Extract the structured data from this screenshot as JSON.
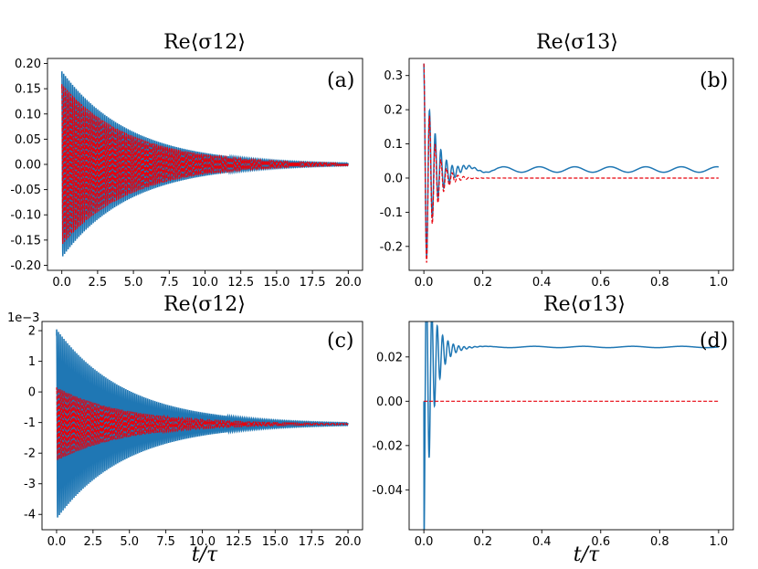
{
  "colors": {
    "blue": "#1f77b4",
    "red": "#e8000b",
    "axis": "#000000"
  },
  "chart_data": [
    {
      "id": "a",
      "type": "line",
      "title": "Re⟨σ12⟩",
      "panel_label": "(a)",
      "xlabel": "",
      "xlim": [
        -1,
        21
      ],
      "ylim": [
        -0.21,
        0.21
      ],
      "xticks": [
        0.0,
        2.5,
        5.0,
        7.5,
        10.0,
        12.5,
        15.0,
        17.5,
        20.0
      ],
      "xtick_labels": [
        "0.0",
        "2.5",
        "5.0",
        "7.5",
        "10.0",
        "12.5",
        "15.0",
        "17.5",
        "20.0"
      ],
      "yticks": [
        -0.2,
        -0.15,
        -0.1,
        -0.05,
        0.0,
        0.05,
        0.1,
        0.15,
        0.2
      ],
      "ytick_labels": [
        "-0.20",
        "-0.15",
        "-0.10",
        "-0.05",
        "0.00",
        "0.05",
        "0.10",
        "0.15",
        "0.20"
      ],
      "offset_text": "",
      "series": [
        {
          "name": "blue",
          "style": "solid",
          "x_range": [
            0,
            20
          ],
          "baseline": 0,
          "amplitude": 0.185,
          "decay_rate": 0.21,
          "periods": 160
        },
        {
          "name": "red",
          "style": "dashed",
          "x_range": [
            0,
            20
          ],
          "baseline": 0,
          "amplitude": 0.16,
          "decay_rate": 0.21,
          "periods": 160
        }
      ]
    },
    {
      "id": "b",
      "type": "line",
      "title": "Re⟨σ13⟩",
      "panel_label": "(b)",
      "xlabel": "",
      "xlim": [
        -0.05,
        1.05
      ],
      "ylim": [
        -0.27,
        0.35
      ],
      "xticks": [
        0.0,
        0.2,
        0.4,
        0.6,
        0.8,
        1.0
      ],
      "xtick_labels": [
        "0.0",
        "0.2",
        "0.4",
        "0.6",
        "0.8",
        "1.0"
      ],
      "yticks": [
        -0.2,
        -0.1,
        0.0,
        0.1,
        0.2,
        0.3
      ],
      "ytick_labels": [
        "-0.2",
        "-0.1",
        "0.0",
        "0.1",
        "0.2",
        "0.3"
      ],
      "offset_text": "",
      "series": [
        {
          "name": "blue",
          "style": "solid",
          "x_range": [
            0,
            1
          ],
          "start": 0.335,
          "steady": 0.025,
          "transient_amp": 0.31,
          "transient_decay": 28,
          "transient_freq": 52,
          "steady_amp": 0.008,
          "steady_freq": 8.3
        },
        {
          "name": "red",
          "style": "dashed",
          "x_range": [
            0,
            1
          ],
          "start": 0.335,
          "steady": 0.0,
          "transient_amp": 0.335,
          "transient_decay": 32,
          "transient_freq": 52,
          "steady_amp": 0.0,
          "steady_freq": 0
        }
      ]
    },
    {
      "id": "c",
      "type": "line",
      "title": "Re⟨σ12⟩",
      "panel_label": "(c)",
      "xlabel": "t/τ",
      "xlim": [
        -1,
        21
      ],
      "ylim": [
        -4.5,
        2.3
      ],
      "xticks": [
        0.0,
        2.5,
        5.0,
        7.5,
        10.0,
        12.5,
        15.0,
        17.5,
        20.0
      ],
      "xtick_labels": [
        "0.0",
        "2.5",
        "5.0",
        "7.5",
        "10.0",
        "12.5",
        "15.0",
        "17.5",
        "20.0"
      ],
      "yticks": [
        -4,
        -3,
        -2,
        -1,
        0,
        1,
        2
      ],
      "ytick_labels": [
        "-4",
        "-3",
        "-2",
        "-1",
        "0",
        "1",
        "2"
      ],
      "offset_text": "1e−3",
      "series": [
        {
          "name": "blue",
          "style": "solid",
          "x_range": [
            0,
            20
          ],
          "baseline": -1.05,
          "amplitude": 3.1,
          "decay_rate": 0.21,
          "periods": 160
        },
        {
          "name": "red",
          "style": "dashed",
          "x_range": [
            0,
            20
          ],
          "baseline": -1.05,
          "amplitude": 1.2,
          "decay_rate": 0.21,
          "periods": 160
        }
      ]
    },
    {
      "id": "d",
      "type": "line",
      "title": "Re⟨σ13⟩",
      "panel_label": "(d)",
      "xlabel": "t/τ",
      "xlim": [
        -0.05,
        1.05
      ],
      "ylim": [
        -0.058,
        0.036
      ],
      "xticks": [
        0.0,
        0.2,
        0.4,
        0.6,
        0.8,
        1.0
      ],
      "xtick_labels": [
        "0.0",
        "0.2",
        "0.4",
        "0.6",
        "0.8",
        "1.0"
      ],
      "yticks": [
        -0.04,
        -0.02,
        0.0,
        0.02
      ],
      "ytick_labels": [
        "-0.04",
        "-0.02",
        "0.00",
        "0.02"
      ],
      "offset_text": "",
      "series": [
        {
          "name": "blue",
          "style": "solid",
          "x_range": [
            0,
            1
          ],
          "start": 0.0,
          "steady": 0.0245,
          "transient_amp": -0.068,
          "transient_decay": 34,
          "transient_freq": 55,
          "steady_amp": 0.0003,
          "steady_freq": 6
        },
        {
          "name": "red",
          "style": "dashed",
          "x_range": [
            0,
            1
          ],
          "start": 0.0,
          "steady": 0.0,
          "transient_amp": 0.0,
          "transient_decay": 1,
          "transient_freq": 1,
          "steady_amp": 0.0,
          "steady_freq": 0
        }
      ]
    }
  ]
}
